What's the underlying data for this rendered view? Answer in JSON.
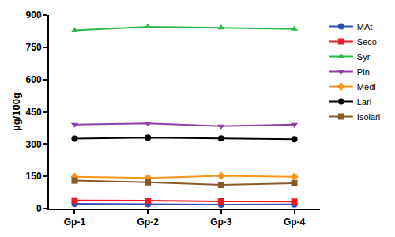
{
  "chart_data": {
    "type": "line",
    "y_label": "µg/100g",
    "categories": [
      "Gp-1",
      "Gp-2",
      "Gp-3",
      "Gp-4"
    ],
    "series": [
      {
        "name": "MAt",
        "color": "#2f4fb3",
        "marker": "circle",
        "values": [
          22,
          20,
          18,
          19
        ]
      },
      {
        "name": "Seco",
        "color": "#ed1c24",
        "marker": "square",
        "values": [
          38,
          37,
          33,
          32
        ]
      },
      {
        "name": "Syr",
        "color": "#2db84a",
        "marker": "triangle-up",
        "values": [
          828,
          845,
          840,
          835
        ]
      },
      {
        "name": "Pin",
        "color": "#8e3fa8",
        "marker": "triangle-down",
        "values": [
          390,
          396,
          383,
          390
        ]
      },
      {
        "name": "Medi",
        "color": "#f7941d",
        "marker": "diamond",
        "values": [
          148,
          142,
          152,
          148
        ]
      },
      {
        "name": "Lari",
        "color": "#000000",
        "marker": "circle",
        "values": [
          325,
          330,
          326,
          322
        ]
      },
      {
        "name": "Isolari",
        "color": "#8b5a2b",
        "marker": "square",
        "values": [
          130,
          122,
          110,
          118
        ]
      }
    ],
    "ylim": [
      0,
      900
    ],
    "yticks": [
      0,
      150,
      300,
      450,
      600,
      750,
      900
    ],
    "grid": false,
    "legend": "right"
  }
}
